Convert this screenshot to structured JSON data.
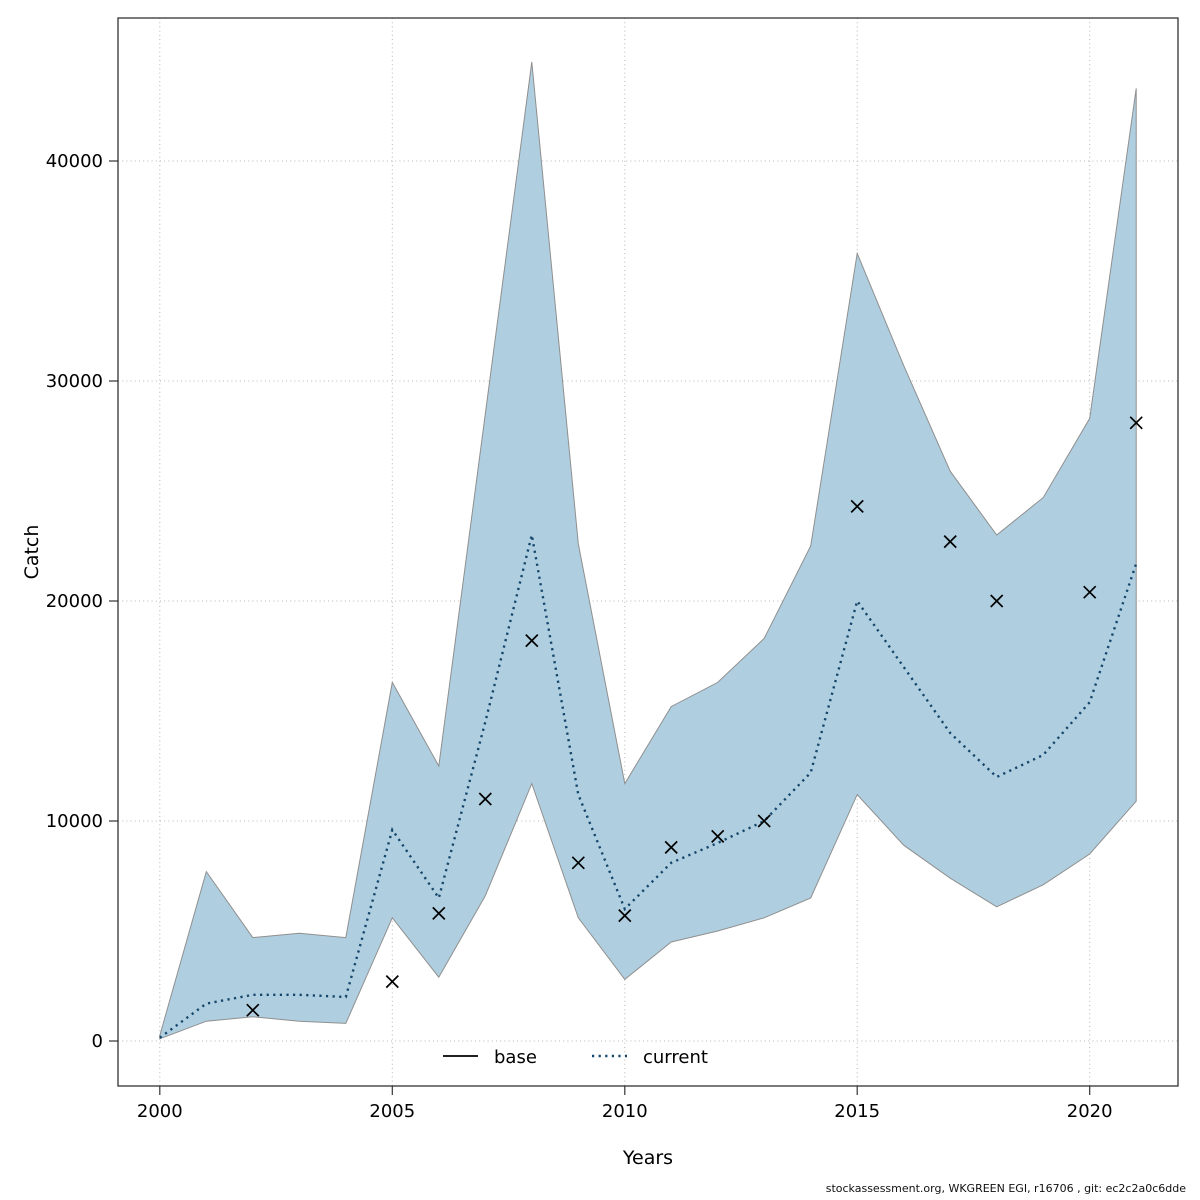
{
  "chart_data": {
    "type": "line",
    "title": "",
    "xlabel": "Years",
    "ylabel": "Catch",
    "footer": "stockassessment.org, WKGREEN EGI, r16706 , git: ec2c2a0c6dde",
    "xlim": [
      1999.1,
      2021.9
    ],
    "ylim": [
      -2045,
      46500
    ],
    "x_ticks": [
      2000,
      2005,
      2010,
      2015,
      2020
    ],
    "y_ticks": [
      0,
      10000,
      20000,
      30000,
      40000
    ],
    "grid": true,
    "years": [
      2000,
      2001,
      2002,
      2003,
      2004,
      2005,
      2006,
      2007,
      2008,
      2009,
      2010,
      2011,
      2012,
      2013,
      2014,
      2015,
      2016,
      2017,
      2018,
      2019,
      2020,
      2021
    ],
    "series": [
      {
        "name": "current",
        "style": "dotted",
        "color": "#14456b",
        "values": [
          150,
          1700,
          2100,
          2100,
          2000,
          9600,
          6500,
          14500,
          23000,
          11200,
          6000,
          8100,
          9000,
          10000,
          12200,
          20000,
          17000,
          14000,
          12000,
          13000,
          15400,
          21700
        ]
      }
    ],
    "band": {
      "name": "current-confidence-band",
      "fill": "#afcfe0",
      "edge": "#8f8f8f",
      "lower": [
        100,
        900,
        1100,
        900,
        800,
        5600,
        2900,
        6600,
        11700,
        5600,
        2800,
        4500,
        5000,
        5600,
        6500,
        11200,
        8900,
        7400,
        6100,
        7100,
        8500,
        10900
      ],
      "upper": [
        250,
        7700,
        4700,
        4900,
        4700,
        16300,
        12500,
        28500,
        44500,
        22600,
        11700,
        15200,
        16300,
        18300,
        22500,
        35800,
        30700,
        25900,
        23000,
        24700,
        28300,
        43300
      ]
    },
    "observations": {
      "marker": "x",
      "color": "#000000",
      "x": [
        2002,
        2005,
        2006,
        2007,
        2008,
        2009,
        2010,
        2011,
        2012,
        2013,
        2015,
        2017,
        2018,
        2020,
        2021
      ],
      "y": [
        1400,
        2700,
        5800,
        11000,
        18200,
        8100,
        5700,
        8800,
        9300,
        10000,
        24300,
        22700,
        20000,
        20400,
        28100
      ]
    },
    "legend": {
      "position": "bottom-center",
      "entries": [
        {
          "label": "base",
          "style": "solid",
          "color": "#000000"
        },
        {
          "label": "current",
          "style": "dotted",
          "color": "#14456b"
        }
      ]
    }
  }
}
